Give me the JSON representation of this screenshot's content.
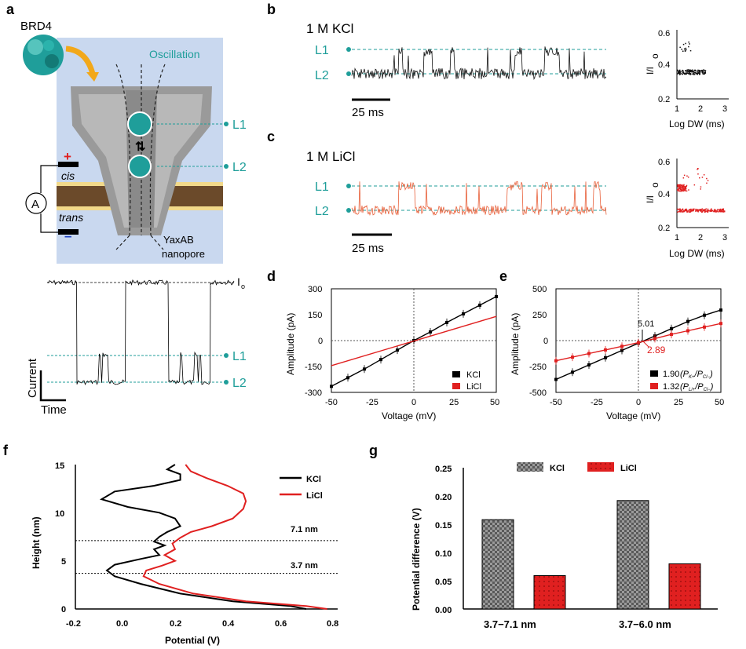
{
  "panels": {
    "a": {
      "letter": "a",
      "protein_label": "BRD4",
      "oscillation_label": "Oscillation",
      "level1": "L1",
      "level2": "L2",
      "cis": "cis",
      "trans": "trans",
      "plus": "+",
      "minus": "–",
      "ammeter": "A",
      "pore_label_line1": "YaxAB",
      "pore_label_line2": "nanopore",
      "io_label": "I",
      "io_sub": "o",
      "current_label": "Current",
      "time_label": "Time"
    },
    "b": {
      "letter": "b",
      "condition": "1 M KCl",
      "level1": "L1",
      "level2": "L2",
      "scalebar": "25 ms",
      "ylabel": "I/I",
      "ylabel_sub": "o",
      "xlabel": "Log DW (ms)",
      "xticks": [
        "1",
        "2",
        "3"
      ],
      "yticks": [
        "0.6",
        "0.4",
        "0.2"
      ]
    },
    "c": {
      "letter": "c",
      "condition": "1 M LiCl",
      "level1": "L1",
      "level2": "L2",
      "scalebar": "25 ms",
      "ylabel": "I/I",
      "ylabel_sub": "o",
      "xlabel": "Log DW (ms)",
      "xticks": [
        "1",
        "2",
        "3"
      ],
      "yticks": [
        "0.6",
        "0.4",
        "0.2"
      ]
    },
    "d": {
      "letter": "d",
      "xlabel": "Voltage (mV)",
      "ylabel": "Amplitude (pA)",
      "xticks": [
        "-50",
        "-25",
        "0",
        "25",
        "50"
      ],
      "yticks": [
        "300",
        "150",
        "0",
        "-150",
        "-300"
      ],
      "legend": [
        "KCl",
        "LiCl"
      ]
    },
    "e": {
      "letter": "e",
      "xlabel": "Voltage (mV)",
      "ylabel": "Amplitude (pA)",
      "xticks": [
        "-50",
        "-25",
        "0",
        "25",
        "50"
      ],
      "yticks": [
        "500",
        "250",
        "0",
        "-250",
        "-500"
      ],
      "annot_k": "5.01",
      "annot_li": "2.89",
      "legend_k_value": "1.90",
      "legend_k_ratio": "(P",
      "legend_k_ion": "K+",
      "legend_k_rest": "/P",
      "legend_k_cl": "Cl−",
      "legend_li_value": "1.32",
      "legend_li_ratio": "(P",
      "legend_li_ion": "Li+",
      "legend_li_rest": "/P",
      "legend_li_cl": "Cl−",
      "close": ")"
    },
    "f": {
      "letter": "f",
      "xlabel": "Potential (V)",
      "ylabel": "Height (nm)",
      "xticks": [
        "-0.2",
        "0.0",
        "0.2",
        "0.4",
        "0.6",
        "0.8"
      ],
      "yticks": [
        "15",
        "10",
        "5",
        "0"
      ],
      "legend": [
        "KCl",
        "LiCl"
      ],
      "marker_high": "7.1 nm",
      "marker_low": "3.7 nm"
    },
    "g": {
      "letter": "g",
      "ylabel": "Potential difference (V)",
      "yticks": [
        "0.25",
        "0.20",
        "0.15",
        "0.10",
        "0.05",
        "0.00"
      ],
      "legend": [
        "KCl",
        "LiCl"
      ]
    }
  },
  "colors": {
    "teal": "#1f9e9a",
    "kcl": "#000000",
    "licl": "#e02020",
    "licl_trace": "#e8603a",
    "bg_schematic": "#c9d8ef",
    "membrane": "#6b4a2a",
    "membrane_head": "#f2d98a"
  },
  "chart_data": [
    {
      "panel": "d",
      "type": "line",
      "xlabel": "Voltage (mV)",
      "ylabel": "Amplitude (pA)",
      "xlim": [
        -50,
        50
      ],
      "ylim": [
        -300,
        300
      ],
      "series": [
        {
          "name": "KCl",
          "x": [
            -50,
            -40,
            -30,
            -20,
            -10,
            0,
            10,
            20,
            30,
            40,
            50
          ],
          "y": [
            -265,
            -215,
            -165,
            -110,
            -55,
            0,
            50,
            105,
            155,
            205,
            255
          ]
        },
        {
          "name": "LiCl",
          "x": [
            -50,
            50
          ],
          "y": [
            -145,
            140
          ]
        }
      ]
    },
    {
      "panel": "e",
      "type": "line",
      "xlabel": "Voltage (mV)",
      "ylabel": "Amplitude (pA)",
      "xlim": [
        -50,
        50
      ],
      "ylim": [
        -500,
        500
      ],
      "series": [
        {
          "name": "1.90",
          "x": [
            -50,
            -40,
            -30,
            -20,
            -10,
            0,
            10,
            20,
            30,
            40,
            50
          ],
          "y": [
            -375,
            -305,
            -235,
            -165,
            -95,
            -25,
            45,
            115,
            185,
            245,
            295
          ]
        },
        {
          "name": "1.32",
          "x": [
            -50,
            -40,
            -30,
            -20,
            -10,
            0,
            10,
            20,
            30,
            40,
            50
          ],
          "y": [
            -195,
            -160,
            -125,
            -90,
            -55,
            -20,
            20,
            60,
            95,
            130,
            165
          ]
        }
      ]
    },
    {
      "panel": "f",
      "type": "line",
      "xlabel": "Potential (V)",
      "ylabel": "Height (nm)",
      "xlim": [
        -0.2,
        0.8
      ],
      "ylim": [
        0,
        15
      ],
      "series": [
        {
          "name": "KCl",
          "points": [
            [
              0.68,
              0
            ],
            [
              0.62,
              0.3
            ],
            [
              0.4,
              0.8
            ],
            [
              0.2,
              1.6
            ],
            [
              0.05,
              2.6
            ],
            [
              -0.05,
              3.4
            ],
            [
              -0.08,
              4.0
            ],
            [
              -0.05,
              4.6
            ],
            [
              0.05,
              5.2
            ],
            [
              0.12,
              5.6
            ],
            [
              0.1,
              6.2
            ],
            [
              0.14,
              6.6
            ],
            [
              0.1,
              7.0
            ],
            [
              0.12,
              7.5
            ],
            [
              0.15,
              8.0
            ],
            [
              0.2,
              8.6
            ],
            [
              0.18,
              9.4
            ],
            [
              0.12,
              10.0
            ],
            [
              0.0,
              10.6
            ],
            [
              -0.1,
              11.4
            ],
            [
              -0.05,
              12.2
            ],
            [
              0.1,
              12.8
            ],
            [
              0.2,
              13.4
            ],
            [
              0.2,
              14.0
            ],
            [
              0.15,
              14.5
            ],
            [
              0.18,
              15.0
            ]
          ]
        },
        {
          "name": "LiCl",
          "points": [
            [
              0.76,
              0
            ],
            [
              0.68,
              0.3
            ],
            [
              0.45,
              0.8
            ],
            [
              0.25,
              1.6
            ],
            [
              0.12,
              2.6
            ],
            [
              0.06,
              3.4
            ],
            [
              0.07,
              4.0
            ],
            [
              0.13,
              4.5
            ],
            [
              0.18,
              5.0
            ],
            [
              0.14,
              5.6
            ],
            [
              0.18,
              6.2
            ],
            [
              0.17,
              6.8
            ],
            [
              0.2,
              7.4
            ],
            [
              0.24,
              8.0
            ],
            [
              0.32,
              8.6
            ],
            [
              0.4,
              9.4
            ],
            [
              0.44,
              10.4
            ],
            [
              0.45,
              11.2
            ],
            [
              0.44,
              12.0
            ],
            [
              0.38,
              12.8
            ],
            [
              0.3,
              13.6
            ],
            [
              0.24,
              14.3
            ],
            [
              0.22,
              15.0
            ]
          ]
        }
      ],
      "hlines": [
        7.1,
        3.7
      ]
    },
    {
      "panel": "g",
      "type": "bar",
      "categories": [
        "3.7−7.1 nm",
        "3.7−6.0 nm"
      ],
      "ylabel": "Potential difference (V)",
      "ylim": [
        0,
        0.25
      ],
      "series": [
        {
          "name": "KCl",
          "values": [
            0.158,
            0.192
          ]
        },
        {
          "name": "LiCl",
          "values": [
            0.059,
            0.08
          ]
        }
      ]
    }
  ]
}
